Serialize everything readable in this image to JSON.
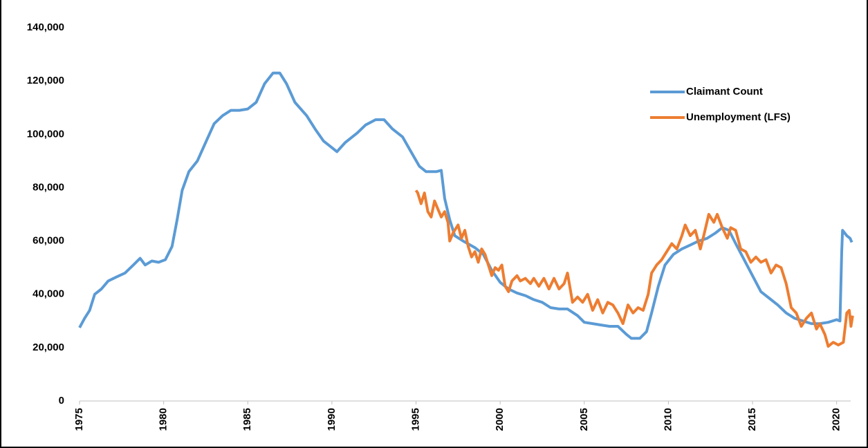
{
  "chart_data": {
    "type": "line",
    "xlim": [
      1975,
      2021
    ],
    "xticks": [
      1975,
      1980,
      1985,
      1990,
      1995,
      2000,
      2005,
      2010,
      2015,
      2020
    ],
    "ylim": [
      0,
      140000
    ],
    "yticks": [
      0,
      {
        "value": 20000,
        "label": "20,000"
      },
      {
        "value": 40000,
        "label": "40,000"
      },
      {
        "value": 60000,
        "label": "60,000"
      },
      {
        "value": 80000,
        "label": "80,000"
      },
      {
        "value": 100000,
        "label": "100,000"
      },
      {
        "value": 120000,
        "label": "120,000"
      },
      {
        "value": 140000,
        "label": "140,000"
      }
    ],
    "grid": false,
    "legend": "upper right",
    "series": [
      {
        "name": "Claimant Count",
        "color": "#5b9bd5",
        "x": [
          1975.0,
          1975.3,
          1975.6,
          1975.9,
          1976.3,
          1976.7,
          1977.2,
          1977.7,
          1978.2,
          1978.6,
          1978.9,
          1979.3,
          1979.7,
          1980.1,
          1980.5,
          1980.8,
          1981.1,
          1981.5,
          1982.0,
          1982.5,
          1983.0,
          1983.5,
          1984.0,
          1984.5,
          1985.0,
          1985.5,
          1986.0,
          1986.5,
          1986.9,
          1987.3,
          1987.8,
          1988.5,
          1989.0,
          1989.5,
          1990.0,
          1990.3,
          1990.8,
          1991.5,
          1992.0,
          1992.6,
          1993.1,
          1993.6,
          1994.2,
          1994.7,
          1995.2,
          1995.6,
          1996.2,
          1996.5,
          1996.7,
          1997.0,
          1997.3,
          1997.8,
          1998.5,
          1999.0,
          1999.5,
          2000.0,
          2000.5,
          2001.0,
          2001.5,
          2002.0,
          2002.5,
          2003.0,
          2003.5,
          2004.0,
          2004.6,
          2005.0,
          2005.5,
          2006.0,
          2006.5,
          2007.0,
          2007.5,
          2007.8,
          2008.3,
          2008.7,
          2009.0,
          2009.4,
          2009.8,
          2010.3,
          2010.8,
          2011.3,
          2011.8,
          2012.3,
          2012.8,
          2013.2,
          2013.6,
          2014.0,
          2014.5,
          2015.0,
          2015.5,
          2016.0,
          2016.5,
          2017.0,
          2017.5,
          2018.0,
          2018.5,
          2019.0,
          2019.5,
          2020.0,
          2020.2,
          2020.3,
          2020.35,
          2020.6,
          2020.8,
          2020.9
        ],
        "values": [
          27500,
          31000,
          34000,
          40000,
          42000,
          45000,
          46500,
          48000,
          51000,
          53500,
          51000,
          52500,
          52000,
          53000,
          58000,
          68000,
          79000,
          86000,
          90000,
          97000,
          104000,
          107000,
          109000,
          109000,
          109500,
          112000,
          119000,
          123000,
          123000,
          119000,
          112000,
          107000,
          102000,
          97500,
          95000,
          93500,
          97000,
          100500,
          103500,
          105500,
          105500,
          102000,
          99000,
          93500,
          88000,
          86000,
          86000,
          86500,
          76000,
          68000,
          62000,
          60000,
          57500,
          55000,
          49000,
          44500,
          42000,
          40500,
          39500,
          38000,
          37000,
          35000,
          34500,
          34500,
          32000,
          29500,
          29000,
          28500,
          28000,
          28000,
          25000,
          23500,
          23500,
          26000,
          33000,
          43000,
          51000,
          55000,
          57000,
          58500,
          60000,
          61000,
          63000,
          65000,
          64000,
          59000,
          53000,
          47000,
          41000,
          38500,
          36000,
          33000,
          31000,
          30000,
          29000,
          29000,
          29500,
          30500,
          30000,
          56000,
          64000,
          62000,
          61000,
          59500
        ]
      },
      {
        "name": "Unemployment (LFS)",
        "color": "#ed7d31",
        "x": [
          1995.0,
          1995.1,
          1995.3,
          1995.5,
          1995.7,
          1995.9,
          1996.1,
          1996.3,
          1996.5,
          1996.7,
          1996.9,
          1997.0,
          1997.2,
          1997.5,
          1997.7,
          1997.9,
          1998.1,
          1998.3,
          1998.5,
          1998.7,
          1998.9,
          1999.1,
          1999.3,
          1999.5,
          1999.7,
          1999.9,
          2000.1,
          2000.3,
          2000.5,
          2000.7,
          2001.0,
          2001.2,
          2001.5,
          2001.8,
          2002.0,
          2002.3,
          2002.6,
          2002.9,
          2003.2,
          2003.5,
          2003.8,
          2004.0,
          2004.3,
          2004.6,
          2004.9,
          2005.2,
          2005.5,
          2005.8,
          2006.1,
          2006.4,
          2006.7,
          2007.0,
          2007.3,
          2007.6,
          2007.9,
          2008.2,
          2008.5,
          2008.8,
          2009.0,
          2009.3,
          2009.6,
          2009.9,
          2010.2,
          2010.5,
          2010.8,
          2011.0,
          2011.3,
          2011.6,
          2011.9,
          2012.1,
          2012.4,
          2012.7,
          2012.9,
          2013.2,
          2013.5,
          2013.7,
          2014.0,
          2014.3,
          2014.6,
          2014.9,
          2015.2,
          2015.5,
          2015.8,
          2016.1,
          2016.4,
          2016.7,
          2017.0,
          2017.3,
          2017.6,
          2017.9,
          2018.2,
          2018.5,
          2018.8,
          2019.0,
          2019.3,
          2019.5,
          2019.8,
          2020.1,
          2020.4,
          2020.6,
          2020.75,
          2020.85,
          2020.95
        ],
        "values": [
          79000,
          78000,
          74000,
          78000,
          71000,
          69000,
          75000,
          72000,
          69000,
          71000,
          67000,
          60000,
          63000,
          66000,
          61000,
          64000,
          58000,
          54000,
          56000,
          52000,
          57000,
          55000,
          51000,
          47000,
          50000,
          49000,
          51000,
          43000,
          41000,
          45000,
          47000,
          45000,
          46000,
          44000,
          46000,
          43000,
          46000,
          42000,
          46000,
          42000,
          44000,
          48000,
          37000,
          39000,
          37000,
          40000,
          34000,
          38000,
          33000,
          37000,
          36000,
          33000,
          29000,
          36000,
          33000,
          35000,
          34000,
          40000,
          48000,
          51000,
          53000,
          56000,
          59000,
          57000,
          62000,
          66000,
          62000,
          64000,
          57000,
          62000,
          70000,
          67000,
          70000,
          65000,
          61000,
          65000,
          64000,
          57000,
          56000,
          52000,
          54000,
          52000,
          53000,
          48000,
          51000,
          50000,
          44000,
          35000,
          33000,
          28000,
          31000,
          33000,
          27000,
          29000,
          25000,
          20500,
          22000,
          21000,
          22000,
          33000,
          34000,
          28000,
          32000
        ]
      }
    ]
  }
}
